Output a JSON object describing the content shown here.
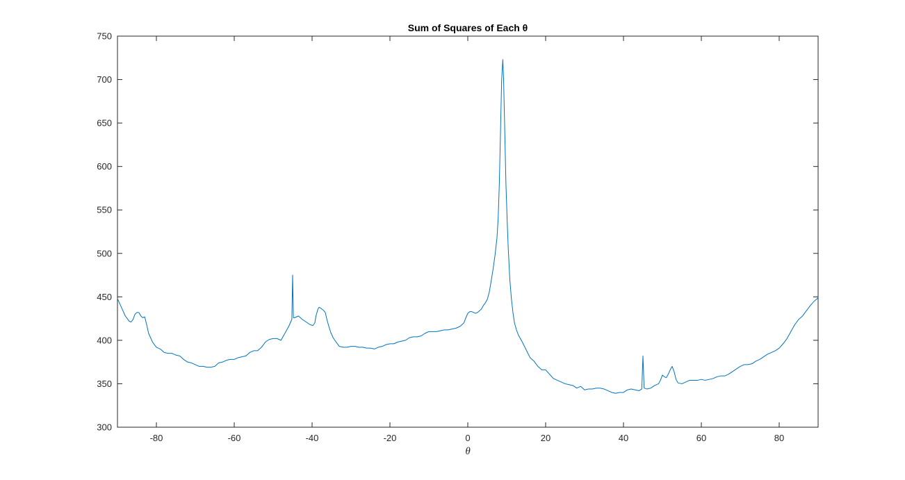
{
  "chart_data": {
    "type": "line",
    "title": "Sum of Squares of Each θ",
    "xlabel": "θ",
    "ylabel": "",
    "xlim": [
      -90,
      90
    ],
    "ylim": [
      300,
      750
    ],
    "xticks": [
      -80,
      -60,
      -40,
      -20,
      0,
      20,
      40,
      60,
      80
    ],
    "yticks": [
      300,
      350,
      400,
      450,
      500,
      550,
      600,
      650,
      700,
      750
    ],
    "grid": false,
    "box": true,
    "series": [
      {
        "color": "#0072BD",
        "points": [
          [
            -90,
            448
          ],
          [
            -89,
            438
          ],
          [
            -88,
            428
          ],
          [
            -87,
            422
          ],
          [
            -86.5,
            421
          ],
          [
            -86,
            424
          ],
          [
            -85.5,
            430
          ],
          [
            -85,
            432
          ],
          [
            -84.5,
            432
          ],
          [
            -84,
            428
          ],
          [
            -83.5,
            426
          ],
          [
            -83,
            427
          ],
          [
            -82.5,
            418
          ],
          [
            -82,
            408
          ],
          [
            -81,
            398
          ],
          [
            -80,
            392
          ],
          [
            -79,
            390
          ],
          [
            -78,
            386
          ],
          [
            -77,
            385
          ],
          [
            -76,
            385
          ],
          [
            -75,
            383
          ],
          [
            -74,
            382
          ],
          [
            -73,
            378
          ],
          [
            -72,
            375
          ],
          [
            -71,
            374
          ],
          [
            -70,
            372
          ],
          [
            -69,
            370
          ],
          [
            -68,
            370
          ],
          [
            -67,
            369
          ],
          [
            -66,
            369
          ],
          [
            -65,
            370
          ],
          [
            -64,
            374
          ],
          [
            -63,
            375
          ],
          [
            -62,
            377
          ],
          [
            -61,
            378
          ],
          [
            -60,
            378
          ],
          [
            -59,
            380
          ],
          [
            -58,
            381
          ],
          [
            -57,
            382
          ],
          [
            -56,
            386
          ],
          [
            -55,
            388
          ],
          [
            -54,
            388
          ],
          [
            -53,
            392
          ],
          [
            -52,
            398
          ],
          [
            -51,
            401
          ],
          [
            -50,
            402
          ],
          [
            -49,
            402
          ],
          [
            -48,
            400
          ],
          [
            -47,
            408
          ],
          [
            -46,
            416
          ],
          [
            -45.5,
            421
          ],
          [
            -45.2,
            424
          ],
          [
            -45.0,
            475
          ],
          [
            -44.8,
            426
          ],
          [
            -44.5,
            426
          ],
          [
            -43.5,
            428
          ],
          [
            -42.5,
            424
          ],
          [
            -41.5,
            421
          ],
          [
            -40.5,
            418
          ],
          [
            -39.8,
            417
          ],
          [
            -39.3,
            420
          ],
          [
            -39,
            428
          ],
          [
            -38.5,
            436
          ],
          [
            -38.2,
            438
          ],
          [
            -37.8,
            437
          ],
          [
            -37.2,
            435
          ],
          [
            -36.6,
            432
          ],
          [
            -36.2,
            424
          ],
          [
            -35.7,
            416
          ],
          [
            -35.2,
            409
          ],
          [
            -34.6,
            403
          ],
          [
            -34,
            399
          ],
          [
            -33,
            393
          ],
          [
            -32,
            392
          ],
          [
            -31,
            392
          ],
          [
            -30,
            393
          ],
          [
            -29,
            393
          ],
          [
            -28,
            392
          ],
          [
            -27,
            392
          ],
          [
            -26,
            391
          ],
          [
            -25,
            391
          ],
          [
            -24,
            390
          ],
          [
            -23,
            392
          ],
          [
            -22,
            393
          ],
          [
            -21,
            395
          ],
          [
            -20,
            396
          ],
          [
            -19,
            396
          ],
          [
            -18,
            398
          ],
          [
            -17,
            399
          ],
          [
            -16,
            400
          ],
          [
            -15,
            403
          ],
          [
            -14,
            404
          ],
          [
            -13,
            404
          ],
          [
            -12,
            405
          ],
          [
            -11,
            408
          ],
          [
            -10,
            410
          ],
          [
            -9,
            410
          ],
          [
            -8,
            410
          ],
          [
            -7,
            411
          ],
          [
            -6,
            412
          ],
          [
            -5,
            412
          ],
          [
            -4,
            413
          ],
          [
            -3,
            414
          ],
          [
            -2,
            416
          ],
          [
            -1,
            420
          ],
          [
            -0.5,
            426
          ],
          [
            0,
            431
          ],
          [
            0.5,
            433
          ],
          [
            1,
            433
          ],
          [
            1.5,
            432
          ],
          [
            2,
            431
          ],
          [
            2.5,
            432
          ],
          [
            3,
            434
          ],
          [
            3.5,
            436
          ],
          [
            4,
            440
          ],
          [
            4.5,
            443
          ],
          [
            5,
            447
          ],
          [
            5.5,
            455
          ],
          [
            6,
            468
          ],
          [
            6.5,
            482
          ],
          [
            7,
            498
          ],
          [
            7.5,
            518
          ],
          [
            7.8,
            540
          ],
          [
            8.1,
            580
          ],
          [
            8.4,
            640
          ],
          [
            8.7,
            700
          ],
          [
            9.0,
            723
          ],
          [
            9.2,
            700
          ],
          [
            9.5,
            640
          ],
          [
            9.8,
            580
          ],
          [
            10.1,
            540
          ],
          [
            10.4,
            505
          ],
          [
            10.8,
            470
          ],
          [
            11.2,
            448
          ],
          [
            11.6,
            432
          ],
          [
            12,
            420
          ],
          [
            12.5,
            412
          ],
          [
            13,
            406
          ],
          [
            14,
            398
          ],
          [
            15,
            389
          ],
          [
            16,
            380
          ],
          [
            17,
            376
          ],
          [
            18,
            370
          ],
          [
            19,
            366
          ],
          [
            20,
            366
          ],
          [
            21,
            361
          ],
          [
            22,
            356
          ],
          [
            23,
            354
          ],
          [
            24,
            352
          ],
          [
            25,
            350
          ],
          [
            26,
            349
          ],
          [
            27,
            348
          ],
          [
            28,
            345
          ],
          [
            29,
            347
          ],
          [
            30,
            343
          ],
          [
            31,
            344
          ],
          [
            32,
            344
          ],
          [
            33,
            345
          ],
          [
            34,
            345
          ],
          [
            35,
            344
          ],
          [
            36,
            342
          ],
          [
            37,
            340
          ],
          [
            38,
            339
          ],
          [
            39,
            340
          ],
          [
            40,
            340
          ],
          [
            41,
            343
          ],
          [
            42,
            344
          ],
          [
            43,
            343
          ],
          [
            44,
            342
          ],
          [
            44.7,
            344
          ],
          [
            45.0,
            382
          ],
          [
            45.3,
            345
          ],
          [
            46,
            344
          ],
          [
            47,
            345
          ],
          [
            48,
            348
          ],
          [
            49,
            350
          ],
          [
            49.5,
            354
          ],
          [
            50,
            360
          ],
          [
            50.5,
            358
          ],
          [
            51,
            357
          ],
          [
            51.5,
            361
          ],
          [
            52,
            366
          ],
          [
            52.5,
            370
          ],
          [
            53,
            364
          ],
          [
            53.5,
            355
          ],
          [
            54,
            351
          ],
          [
            55,
            350
          ],
          [
            56,
            352
          ],
          [
            57,
            354
          ],
          [
            58,
            354
          ],
          [
            59,
            354
          ],
          [
            60,
            355
          ],
          [
            61,
            354
          ],
          [
            62,
            355
          ],
          [
            63,
            356
          ],
          [
            64,
            358
          ],
          [
            65,
            359
          ],
          [
            66,
            359
          ],
          [
            67,
            361
          ],
          [
            68,
            364
          ],
          [
            69,
            367
          ],
          [
            70,
            370
          ],
          [
            71,
            372
          ],
          [
            72,
            372
          ],
          [
            73,
            373
          ],
          [
            74,
            376
          ],
          [
            75,
            378
          ],
          [
            76,
            381
          ],
          [
            77,
            384
          ],
          [
            78,
            386
          ],
          [
            79,
            388
          ],
          [
            80,
            391
          ],
          [
            81,
            396
          ],
          [
            82,
            402
          ],
          [
            83,
            410
          ],
          [
            84,
            418
          ],
          [
            85,
            424
          ],
          [
            86,
            428
          ],
          [
            87,
            434
          ],
          [
            88,
            440
          ],
          [
            89,
            445
          ],
          [
            90,
            449
          ]
        ]
      }
    ]
  }
}
